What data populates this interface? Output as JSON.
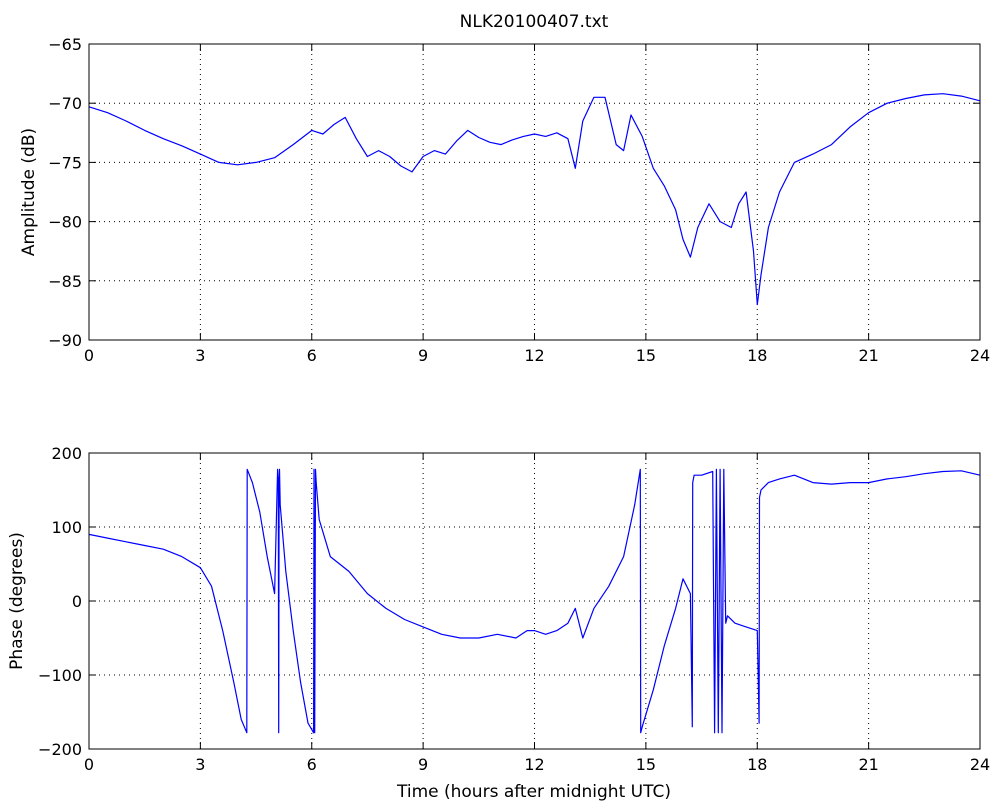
{
  "window": {
    "background": "#ffffff"
  },
  "figure_title": "NLK20100407.txt",
  "style": {
    "trace_color": "#0000ff",
    "axis_color": "#000000",
    "grid_color": "#000000"
  },
  "chart_data": [
    {
      "type": "line",
      "title": "NLK20100407.txt",
      "xlabel": "",
      "ylabel": "Amplitude (dB)",
      "xlim": [
        0,
        24
      ],
      "ylim": [
        -90,
        -65
      ],
      "xticks": [
        0,
        3,
        6,
        9,
        12,
        15,
        18,
        21,
        24
      ],
      "xtick_labels": [
        "0",
        "3",
        "6",
        "9",
        "12",
        "15",
        "18",
        "21",
        "24"
      ],
      "yticks": [
        -65,
        -70,
        -75,
        -80,
        -85,
        -90
      ],
      "ytick_labels": [
        "−65",
        "−70",
        "−75",
        "−80",
        "−85",
        "−90"
      ],
      "grid": true,
      "series": [
        {
          "color": "#0000ff",
          "x": [
            0,
            0.5,
            1,
            1.5,
            2,
            2.5,
            3,
            3.5,
            4,
            4.5,
            5,
            5.5,
            6,
            6.3,
            6.6,
            6.9,
            7.2,
            7.5,
            7.8,
            8.1,
            8.4,
            8.7,
            9,
            9.3,
            9.6,
            9.9,
            10.2,
            10.5,
            10.8,
            11.1,
            11.4,
            11.7,
            12,
            12.3,
            12.6,
            12.9,
            13.1,
            13.3,
            13.6,
            13.9,
            14.2,
            14.4,
            14.6,
            14.9,
            15.2,
            15.5,
            15.8,
            16.0,
            16.2,
            16.4,
            16.7,
            17.0,
            17.3,
            17.5,
            17.7,
            17.9,
            18.0,
            18.1,
            18.3,
            18.6,
            19,
            19.5,
            20,
            20.5,
            21,
            21.5,
            22,
            22.5,
            23,
            23.5,
            24
          ],
          "y": [
            -70.3,
            -70.8,
            -71.5,
            -72.3,
            -73.0,
            -73.6,
            -74.3,
            -75.0,
            -75.2,
            -75.0,
            -74.6,
            -73.5,
            -72.3,
            -72.6,
            -71.8,
            -71.2,
            -73.0,
            -74.5,
            -74.0,
            -74.5,
            -75.3,
            -75.8,
            -74.5,
            -74.0,
            -74.3,
            -73.2,
            -72.3,
            -72.9,
            -73.3,
            -73.5,
            -73.1,
            -72.8,
            -72.6,
            -72.8,
            -72.5,
            -73.0,
            -75.5,
            -71.5,
            -69.5,
            -69.5,
            -73.5,
            -74.0,
            -71.0,
            -72.8,
            -75.5,
            -77.0,
            -79.0,
            -81.5,
            -83.0,
            -80.5,
            -78.5,
            -80.0,
            -80.5,
            -78.5,
            -77.5,
            -82.5,
            -87.0,
            -84.5,
            -80.5,
            -77.5,
            -75.0,
            -74.3,
            -73.5,
            -72.0,
            -70.8,
            -70.0,
            -69.6,
            -69.3,
            -69.2,
            -69.4,
            -69.8
          ]
        }
      ]
    },
    {
      "type": "line",
      "title": "",
      "xlabel": "Time (hours after midnight UTC)",
      "ylabel": "Phase (degrees)",
      "xlim": [
        0,
        24
      ],
      "ylim": [
        -200,
        200
      ],
      "xticks": [
        0,
        3,
        6,
        9,
        12,
        15,
        18,
        21,
        24
      ],
      "xtick_labels": [
        "0",
        "3",
        "6",
        "9",
        "12",
        "15",
        "18",
        "21",
        "24"
      ],
      "yticks": [
        200,
        100,
        0,
        -100,
        -200
      ],
      "ytick_labels": [
        "200",
        "100",
        "0",
        "−100",
        "−200"
      ],
      "grid": true,
      "series": [
        {
          "color": "#0000ff",
          "x": [
            0,
            0.5,
            1,
            1.5,
            2,
            2.5,
            3,
            3.3,
            3.6,
            3.9,
            4.1,
            4.25,
            4.26,
            4.4,
            4.6,
            4.8,
            5.0,
            5.08,
            5.1,
            5.11,
            5.12,
            5.13,
            5.15,
            5.3,
            5.5,
            5.7,
            5.9,
            6.05,
            6.06,
            6.08,
            6.1,
            6.12,
            6.2,
            6.5,
            7.0,
            7.5,
            8.0,
            8.5,
            9.0,
            9.5,
            10.0,
            10.5,
            11.0,
            11.5,
            11.8,
            12.0,
            12.3,
            12.6,
            12.9,
            13.1,
            13.3,
            13.6,
            14.0,
            14.4,
            14.7,
            14.85,
            14.86,
            14.9,
            15.2,
            15.5,
            15.8,
            16.0,
            16.2,
            16.25,
            16.26,
            16.3,
            16.5,
            16.8,
            16.85,
            16.9,
            16.95,
            17.0,
            17.05,
            17.1,
            17.15,
            17.2,
            17.4,
            17.7,
            18.0,
            18.05,
            18.06,
            18.1,
            18.3,
            18.6,
            19,
            19.5,
            20,
            20.5,
            21,
            21.5,
            22,
            22.5,
            23,
            23.5,
            24
          ],
          "y": [
            90,
            85,
            80,
            75,
            70,
            60,
            45,
            20,
            -40,
            -110,
            -160,
            -178,
            178,
            160,
            120,
            60,
            10,
            178,
            160,
            -178,
            160,
            178,
            130,
            40,
            -40,
            -110,
            -165,
            -178,
            178,
            -178,
            178,
            160,
            110,
            60,
            40,
            10,
            -10,
            -25,
            -35,
            -45,
            -50,
            -50,
            -45,
            -50,
            -40,
            -40,
            -45,
            -40,
            -30,
            -10,
            -50,
            -10,
            20,
            60,
            130,
            178,
            -178,
            -170,
            -120,
            -60,
            -10,
            30,
            10,
            -170,
            160,
            170,
            170,
            175,
            -178,
            178,
            -178,
            178,
            -178,
            178,
            -30,
            -20,
            -30,
            -35,
            -40,
            -165,
            140,
            150,
            160,
            165,
            170,
            160,
            158,
            160,
            160,
            165,
            168,
            172,
            175,
            176,
            170
          ]
        }
      ]
    }
  ]
}
